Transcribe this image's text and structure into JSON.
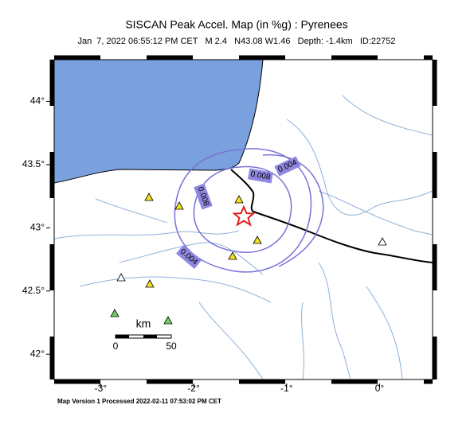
{
  "header": {
    "title": "SISCAN Peak Accel. Map (in %g) : Pyrenees",
    "subtitle": "Jan  7, 2022 06:55:12 PM CET   M 2.4   N43.08 W1.46   Depth: -1.4km   ID:22752"
  },
  "map": {
    "xlim": [
      -3.5,
      0.57
    ],
    "ylim": [
      41.8,
      44.33
    ],
    "xticks": [
      {
        "value": -3,
        "label": "-3°"
      },
      {
        "value": -2,
        "label": "-2°"
      },
      {
        "value": -1,
        "label": "-1°"
      },
      {
        "value": 0,
        "label": "0°"
      }
    ],
    "yticks": [
      {
        "value": 42,
        "label": "42°"
      },
      {
        "value": 42.5,
        "label": "42.5°"
      },
      {
        "value": 43,
        "label": "43°"
      },
      {
        "value": 43.5,
        "label": "43.5°"
      },
      {
        "value": 44,
        "label": "44°"
      }
    ],
    "contour_labels": [
      "0.004",
      "0.008",
      "0.008",
      "0.004"
    ],
    "scale": {
      "unit": "km",
      "start": "0",
      "end": "50"
    }
  },
  "footer": "Map Version 1 Processed 2022-02-11 07:53:02 PM CET"
}
